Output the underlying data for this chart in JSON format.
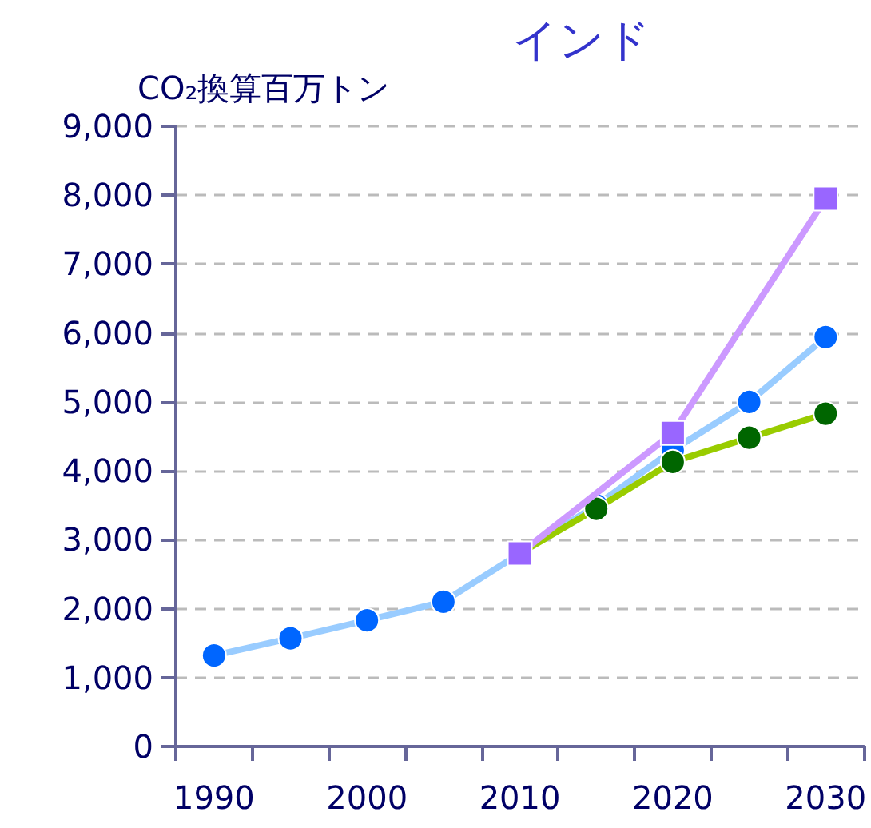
{
  "chart_data": {
    "type": "line",
    "title": "インド",
    "ylabel": "CO₂換算百万トン",
    "categories": [
      "1990",
      null,
      "2000",
      null,
      "2010",
      null,
      "2020",
      null,
      "2030"
    ],
    "series": [
      {
        "color": "#99ccff",
        "colors": [
          "#0066ff",
          "#0066ff",
          "#0066ff",
          "#0066ff",
          "#0066ff",
          "#0066ff",
          "#0066ff",
          "#0066ff",
          "#0066ff"
        ],
        "marker": "circle",
        "values": [
          1320,
          1570,
          1830,
          2100,
          2800,
          3500,
          4300,
          5000,
          5940
        ]
      },
      {
        "color": "#99cc00",
        "colors": [
          null,
          null,
          null,
          null,
          "#006600",
          "#006600",
          "#006600",
          "#006600",
          "#006600"
        ],
        "marker": "circle",
        "values": [
          null,
          null,
          null,
          null,
          2800,
          3450,
          4130,
          4480,
          4830
        ]
      },
      {
        "color": "#cc99ff",
        "colors": [
          null,
          null,
          null,
          null,
          "#9966ff",
          null,
          "#9966ff",
          null,
          "#9966ff"
        ],
        "marker": "square",
        "values": [
          null,
          null,
          null,
          null,
          2800,
          null,
          4550,
          null,
          7950
        ]
      }
    ],
    "ylim": [
      0,
      9000
    ],
    "yticks": [
      0,
      {
        "value": 1000,
        "label": "1,000"
      },
      {
        "value": 2000,
        "label": "2,000"
      },
      {
        "value": 3000,
        "label": "3,000"
      },
      {
        "value": 4000,
        "label": "4,000"
      },
      {
        "value": 5000,
        "label": "5,000"
      },
      {
        "value": 6000,
        "label": "6,000"
      },
      {
        "value": 7000,
        "label": "7,000"
      },
      {
        "value": 8000,
        "label": "8,000"
      },
      {
        "value": 9000,
        "label": "9,000"
      }
    ],
    "grid": "y",
    "line_style": "solid"
  }
}
